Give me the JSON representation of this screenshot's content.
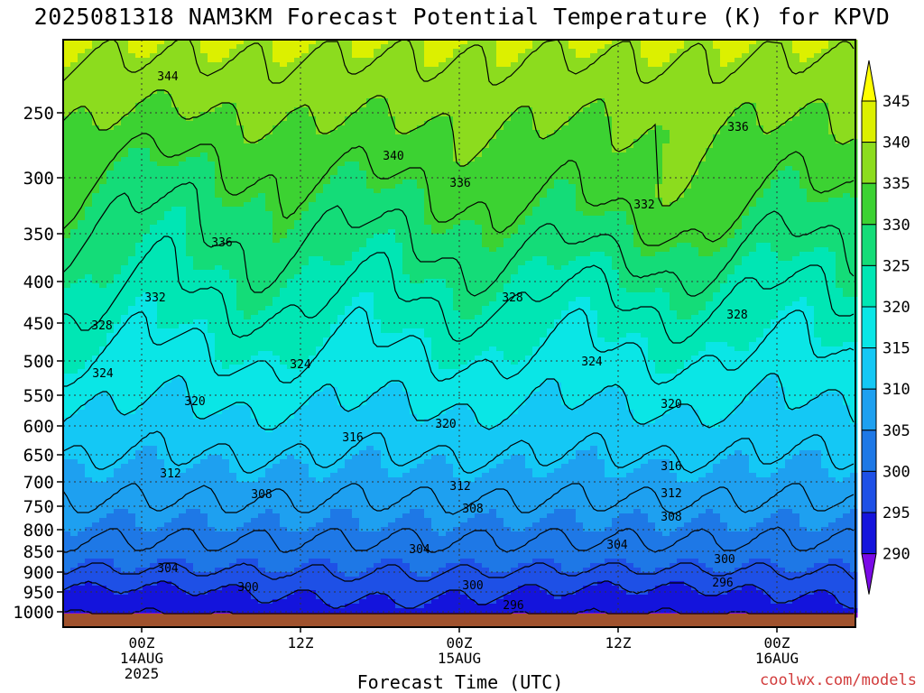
{
  "title": "2025081318 NAM3KM Forecast Potential Temperature (K) for KPVD",
  "xaxis_title": "Forecast Time (UTC)",
  "credit": "coolwx.com/models",
  "chart_data": {
    "type": "heatmap",
    "title": "2025081318 NAM3KM Forecast Potential Temperature (K) for KPVD",
    "xlabel": "Forecast Time (UTC)",
    "ylabel": "",
    "y_scale": "log-pressure",
    "y_ticks": [
      250,
      300,
      350,
      400,
      450,
      500,
      550,
      600,
      650,
      700,
      750,
      800,
      850,
      900,
      950,
      1000
    ],
    "x_ticks": [
      {
        "label": [
          "00Z",
          "14AUG",
          "2025"
        ]
      },
      {
        "label": [
          "12Z"
        ]
      },
      {
        "label": [
          "00Z",
          "15AUG"
        ]
      },
      {
        "label": [
          "12Z"
        ]
      },
      {
        "label": [
          "00Z",
          "16AUG"
        ]
      }
    ],
    "colorbar": {
      "levels": [
        290,
        295,
        300,
        305,
        310,
        315,
        320,
        325,
        330,
        335,
        340,
        345
      ],
      "colors": [
        "#7a0ae6",
        "#4b1ee6",
        "#1414dc",
        "#1e50e6",
        "#1e78e6",
        "#1ea0f0",
        "#14c8f5",
        "#0ae6e6",
        "#00e6b4",
        "#14dc78",
        "#3cd232",
        "#8cdc1e",
        "#dcf000",
        "#ffff00"
      ]
    },
    "contour_labels": [
      {
        "text": "344"
      },
      {
        "text": "340"
      },
      {
        "text": "336"
      },
      {
        "text": "336"
      },
      {
        "text": "336"
      },
      {
        "text": "332"
      },
      {
        "text": "332"
      },
      {
        "text": "328"
      },
      {
        "text": "328"
      },
      {
        "text": "328"
      },
      {
        "text": "324"
      },
      {
        "text": "324"
      },
      {
        "text": "324"
      },
      {
        "text": "320"
      },
      {
        "text": "320"
      },
      {
        "text": "320"
      },
      {
        "text": "316"
      },
      {
        "text": "316"
      },
      {
        "text": "312"
      },
      {
        "text": "312"
      },
      {
        "text": "312"
      },
      {
        "text": "308"
      },
      {
        "text": "308"
      },
      {
        "text": "308"
      },
      {
        "text": "304"
      },
      {
        "text": "304"
      },
      {
        "text": "304"
      },
      {
        "text": "300"
      },
      {
        "text": "300"
      },
      {
        "text": "300"
      },
      {
        "text": "296"
      },
      {
        "text": "296"
      }
    ],
    "grid": true,
    "terrain_color": "#a0522d"
  }
}
